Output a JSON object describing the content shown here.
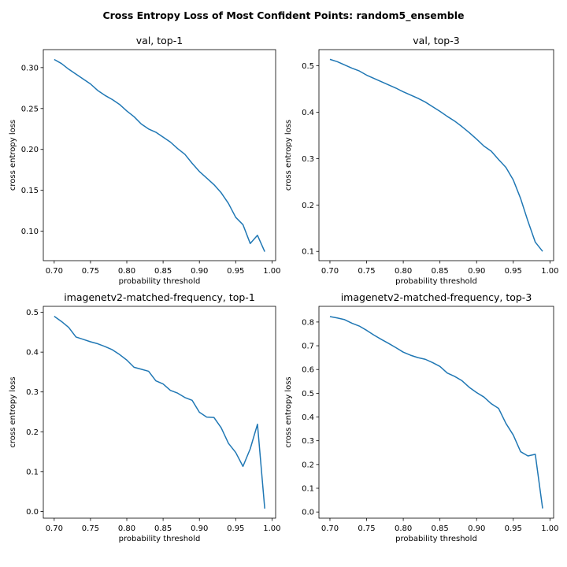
{
  "suptitle": "Cross Entropy Loss of Most Confident Points: random5_ensemble",
  "chart_data": [
    {
      "type": "line",
      "title": "val, top-1",
      "xlabel": "probability threshold",
      "ylabel": "cross entropy loss",
      "xlim": [
        0.685,
        1.005
      ],
      "ylim": [
        0.064,
        0.322
      ],
      "xticks": [
        0.7,
        0.75,
        0.8,
        0.85,
        0.9,
        0.95,
        1.0
      ],
      "xtick_labels": [
        "0.70",
        "0.75",
        "0.80",
        "0.85",
        "0.90",
        "0.95",
        "1.00"
      ],
      "yticks": [
        0.1,
        0.15,
        0.2,
        0.25,
        0.3
      ],
      "ytick_labels": [
        "0.10",
        "0.15",
        "0.20",
        "0.25",
        "0.30"
      ],
      "grid": false,
      "x": [
        0.7,
        0.71,
        0.72,
        0.73,
        0.74,
        0.75,
        0.76,
        0.77,
        0.78,
        0.79,
        0.8,
        0.81,
        0.82,
        0.83,
        0.84,
        0.85,
        0.86,
        0.87,
        0.88,
        0.89,
        0.9,
        0.91,
        0.92,
        0.93,
        0.94,
        0.95,
        0.96,
        0.97,
        0.98,
        0.99
      ],
      "y": [
        0.31,
        0.305,
        0.298,
        0.292,
        0.286,
        0.28,
        0.272,
        0.266,
        0.261,
        0.255,
        0.247,
        0.24,
        0.231,
        0.225,
        0.221,
        0.215,
        0.209,
        0.201,
        0.194,
        0.183,
        0.173,
        0.165,
        0.157,
        0.147,
        0.134,
        0.117,
        0.108,
        0.085,
        0.095,
        0.075
      ]
    },
    {
      "type": "line",
      "title": "val, top-3",
      "xlabel": "probability threshold",
      "ylabel": "cross entropy loss",
      "xlim": [
        0.685,
        1.005
      ],
      "ylim": [
        0.08,
        0.535
      ],
      "xticks": [
        0.7,
        0.75,
        0.8,
        0.85,
        0.9,
        0.95,
        1.0
      ],
      "xtick_labels": [
        "0.70",
        "0.75",
        "0.80",
        "0.85",
        "0.90",
        "0.95",
        "1.00"
      ],
      "yticks": [
        0.1,
        0.2,
        0.3,
        0.4,
        0.5
      ],
      "ytick_labels": [
        "0.1",
        "0.2",
        "0.3",
        "0.4",
        "0.5"
      ],
      "grid": false,
      "x": [
        0.7,
        0.71,
        0.72,
        0.73,
        0.74,
        0.75,
        0.76,
        0.77,
        0.78,
        0.79,
        0.8,
        0.81,
        0.82,
        0.83,
        0.84,
        0.85,
        0.86,
        0.87,
        0.88,
        0.89,
        0.9,
        0.91,
        0.92,
        0.93,
        0.94,
        0.95,
        0.96,
        0.97,
        0.98,
        0.99
      ],
      "y": [
        0.514,
        0.509,
        0.502,
        0.495,
        0.489,
        0.48,
        0.473,
        0.466,
        0.459,
        0.452,
        0.444,
        0.437,
        0.43,
        0.422,
        0.412,
        0.402,
        0.391,
        0.381,
        0.369,
        0.356,
        0.342,
        0.327,
        0.316,
        0.298,
        0.281,
        0.254,
        0.214,
        0.165,
        0.12,
        0.1
      ]
    },
    {
      "type": "line",
      "title": "imagenetv2-matched-frequency, top-1",
      "xlabel": "probability threshold",
      "ylabel": "cross entropy loss",
      "xlim": [
        0.685,
        1.005
      ],
      "ylim": [
        -0.017,
        0.515
      ],
      "xticks": [
        0.7,
        0.75,
        0.8,
        0.85,
        0.9,
        0.95,
        1.0
      ],
      "xtick_labels": [
        "0.70",
        "0.75",
        "0.80",
        "0.85",
        "0.90",
        "0.95",
        "1.00"
      ],
      "yticks": [
        0.0,
        0.1,
        0.2,
        0.3,
        0.4,
        0.5
      ],
      "ytick_labels": [
        "0.0",
        "0.1",
        "0.2",
        "0.3",
        "0.4",
        "0.5"
      ],
      "grid": false,
      "x": [
        0.7,
        0.71,
        0.72,
        0.73,
        0.74,
        0.75,
        0.76,
        0.77,
        0.78,
        0.79,
        0.8,
        0.81,
        0.82,
        0.83,
        0.84,
        0.85,
        0.86,
        0.87,
        0.88,
        0.89,
        0.9,
        0.91,
        0.92,
        0.93,
        0.94,
        0.95,
        0.96,
        0.97,
        0.98,
        0.99
      ],
      "y": [
        0.49,
        0.477,
        0.462,
        0.438,
        0.432,
        0.426,
        0.421,
        0.414,
        0.406,
        0.394,
        0.38,
        0.362,
        0.357,
        0.352,
        0.328,
        0.32,
        0.304,
        0.297,
        0.286,
        0.279,
        0.249,
        0.237,
        0.236,
        0.21,
        0.171,
        0.148,
        0.113,
        0.157,
        0.219,
        0.007
      ]
    },
    {
      "type": "line",
      "title": "imagenetv2-matched-frequency, top-3",
      "xlabel": "probability threshold",
      "ylabel": "cross entropy loss",
      "xlim": [
        0.685,
        1.005
      ],
      "ylim": [
        -0.026,
        0.866
      ],
      "xticks": [
        0.7,
        0.75,
        0.8,
        0.85,
        0.9,
        0.95,
        1.0
      ],
      "xtick_labels": [
        "0.70",
        "0.75",
        "0.80",
        "0.85",
        "0.90",
        "0.95",
        "1.00"
      ],
      "yticks": [
        0.0,
        0.1,
        0.2,
        0.3,
        0.4,
        0.5,
        0.6,
        0.7,
        0.8
      ],
      "ytick_labels": [
        "0.0",
        "0.1",
        "0.2",
        "0.3",
        "0.4",
        "0.5",
        "0.6",
        "0.7",
        "0.8"
      ],
      "grid": false,
      "x": [
        0.7,
        0.71,
        0.72,
        0.73,
        0.74,
        0.75,
        0.76,
        0.77,
        0.78,
        0.79,
        0.8,
        0.81,
        0.82,
        0.83,
        0.84,
        0.85,
        0.86,
        0.87,
        0.88,
        0.89,
        0.9,
        0.91,
        0.92,
        0.93,
        0.94,
        0.95,
        0.96,
        0.97,
        0.98,
        0.99
      ],
      "y": [
        0.823,
        0.817,
        0.81,
        0.795,
        0.783,
        0.765,
        0.745,
        0.727,
        0.71,
        0.692,
        0.673,
        0.66,
        0.65,
        0.643,
        0.629,
        0.613,
        0.585,
        0.571,
        0.553,
        0.525,
        0.503,
        0.484,
        0.456,
        0.436,
        0.373,
        0.324,
        0.254,
        0.236,
        0.243,
        0.015
      ]
    }
  ],
  "colors": {
    "series": "#1f77b4",
    "axes": "#000000",
    "background": "#ffffff"
  }
}
